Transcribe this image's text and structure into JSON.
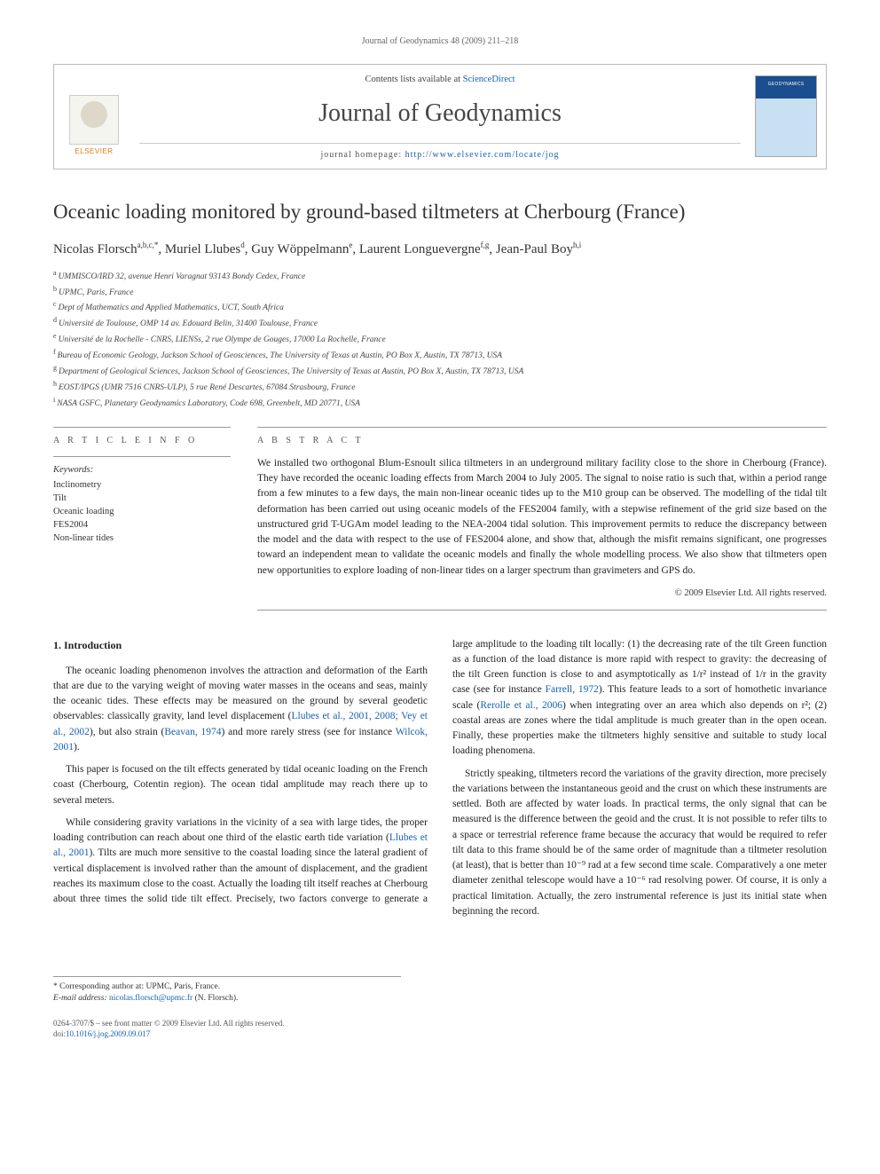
{
  "running_header": "Journal of Geodynamics 48 (2009) 211–218",
  "header_box": {
    "contents_prefix": "Contents lists available at ",
    "contents_link": "ScienceDirect",
    "journal_name": "Journal of Geodynamics",
    "homepage_prefix": "journal homepage: ",
    "homepage_url": "http://www.elsevier.com/locate/jog",
    "publisher_word": "ELSEVIER",
    "cover_label": "GEODYNAMICS"
  },
  "article": {
    "title": "Oceanic loading monitored by ground-based tiltmeters at Cherbourg (France)",
    "authors_html": "Nicolas Florsch<span class='sup'>a,b,c,*</span>, Muriel Llubes<span class='sup'>d</span>, Guy Wöppelmann<span class='sup'>e</span>, Laurent Longuevergne<span class='sup'>f,g</span>, Jean-Paul Boy<span class='sup'>h,i</span>",
    "affiliations": [
      {
        "sup": "a",
        "text": "UMMISCO/IRD 32, avenue Henri Varagnat 93143 Bondy Cedex, France"
      },
      {
        "sup": "b",
        "text": "UPMC, Paris, France"
      },
      {
        "sup": "c",
        "text": "Dept of Mathematics and Applied Mathematics, UCT, South Africa"
      },
      {
        "sup": "d",
        "text": "Université de Toulouse, OMP 14 av. Edouard Belin, 31400 Toulouse, France"
      },
      {
        "sup": "e",
        "text": "Université de la Rochelle - CNRS, LIENSs, 2 rue Olympe de Gouges, 17000 La Rochelle, France"
      },
      {
        "sup": "f",
        "text": "Bureau of Economic Geology, Jackson School of Geosciences, The University of Texas at Austin, PO Box X, Austin, TX 78713, USA"
      },
      {
        "sup": "g",
        "text": "Department of Geological Sciences, Jackson School of Geosciences, The University of Texas at Austin, PO Box X, Austin, TX 78713, USA"
      },
      {
        "sup": "h",
        "text": "EOST/IPGS (UMR 7516 CNRS-ULP), 5 rue René Descartes, 67084 Strasbourg, France"
      },
      {
        "sup": "i",
        "text": "NASA GSFC, Planetary Geodynamics Laboratory, Code 698, Greenbelt, MD 20771, USA"
      }
    ]
  },
  "info": {
    "heading": "A R T I C L E   I N F O",
    "keywords_label": "Keywords:",
    "keywords": [
      "Inclinometry",
      "Tilt",
      "Oceanic loading",
      "FES2004",
      "Non-linear tides"
    ]
  },
  "abstract": {
    "heading": "A B S T R A C T",
    "text": "We installed two orthogonal Blum-Esnoult silica tiltmeters in an underground military facility close to the shore in Cherbourg (France). They have recorded the oceanic loading effects from March 2004 to July 2005. The signal to noise ratio is such that, within a period range from a few minutes to a few days, the main non-linear oceanic tides up to the M10 group can be observed. The modelling of the tidal tilt deformation has been carried out using oceanic models of the FES2004 family, with a stepwise refinement of the grid size based on the unstructured grid T-UGAm model leading to the NEA-2004 tidal solution. This improvement permits to reduce the discrepancy between the model and the data with respect to the use of FES2004 alone, and show that, although the misfit remains significant, one progresses toward an independent mean to validate the oceanic models and finally the whole modelling process. We also show that tiltmeters open new opportunities to explore loading of non-linear tides on a larger spectrum than gravimeters and GPS do.",
    "copyright": "© 2009 Elsevier Ltd. All rights reserved."
  },
  "body": {
    "section_heading": "1. Introduction",
    "p1_a": "The oceanic loading phenomenon involves the attraction and deformation of the Earth that are due to the varying weight of moving water masses in the oceans and seas, mainly the oceanic tides. These effects may be measured on the ground by several geodetic observables: classically gravity, land level displacement (",
    "p1_ref1": "Llubes et al., 2001, 2008; Vey et al., 2002",
    "p1_b": "), but also strain (",
    "p1_ref2": "Beavan, 1974",
    "p1_c": ") and more rarely stress (see for instance ",
    "p1_ref3": "Wilcok, 2001",
    "p1_d": ").",
    "p2": "This paper is focused on the tilt effects generated by tidal oceanic loading on the French coast (Cherbourg, Cotentin region). The ocean tidal amplitude may reach there up to several meters.",
    "p3_a": "While considering gravity variations in the vicinity of a sea with large tides, the proper loading contribution can reach about one third of the elastic earth tide variation (",
    "p3_ref": "Llubes et al., 2001",
    "p3_b": "). Tilts are much more sensitive to the coastal loading since the lateral gradient of vertical displacement is involved rather than the amount of displacement, and the gradient reaches its maximum close to the coast. Actually the loading tilt itself reaches at Cherbourg about three times the solid tide tilt effect. Precisely, two factors con",
    "p3_c": "verge to generate a large amplitude to the loading tilt locally: (1) the decreasing rate of the tilt Green function as a function of the load distance is more rapid with respect to gravity: the decreasing of the tilt Green function is close to and asymptotically as 1/r² instead of 1/r in the gravity case (see for instance ",
    "p3_ref2": "Farrell, 1972",
    "p3_d": "). This feature leads to a sort of homothetic invariance scale (",
    "p3_ref3": "Rerolle et al., 2006",
    "p3_e": ") when integrating over an area which also depends on r²; (2) coastal areas are zones where the tidal amplitude is much greater than in the open ocean. Finally, these properties make the tiltmeters highly sensitive and suitable to study local loading phenomena.",
    "p4": "Strictly speaking, tiltmeters record the variations of the gravity direction, more precisely the variations between the instantaneous geoid and the crust on which these instruments are settled. Both are affected by water loads. In practical terms, the only signal that can be measured is the difference between the geoid and the crust. It is not possible to refer tilts to a space or terrestrial reference frame because the accuracy that would be required to refer tilt data to this frame should be of the same order of magnitude than a tiltmeter resolution (at least), that is better than 10⁻⁹ rad at a few second time scale. Comparatively a one meter diameter zenithal telescope would have a 10⁻⁶ rad resolving power. Of course, it is only a practical limitation. Actually, the zero instrumental reference is just its initial state when beginning the record."
  },
  "footnotes": {
    "corr_label": "* Corresponding author at: UPMC, Paris, France.",
    "email_label": "E-mail address:",
    "email": "nicolas.florsch@upmc.fr",
    "email_suffix": "(N. Florsch)."
  },
  "bottom": {
    "line1": "0264-3707/$ – see front matter © 2009 Elsevier Ltd. All rights reserved.",
    "doi_prefix": "doi:",
    "doi": "10.1016/j.jog.2009.09.017"
  },
  "colors": {
    "link": "#1861b3",
    "publisher": "#e67817",
    "rule": "#999999"
  }
}
